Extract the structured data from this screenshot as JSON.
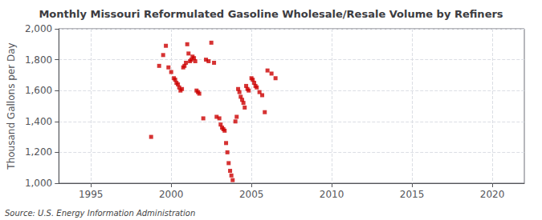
{
  "chart_data": {
    "type": "scatter",
    "title": "Monthly Missouri Reformulated Gasoline Wholesale/Resale Volume by Refiners",
    "ylabel": "Thousand Gallons per Day",
    "annotation": "Source: U.S. Energy Information Administration",
    "color": "#cc0000",
    "marker": "square",
    "grid": true,
    "xlim": [
      1993,
      2022
    ],
    "ylim": [
      1000,
      2000
    ],
    "xticks": [
      1995,
      2000,
      2005,
      2010,
      2015,
      2020
    ],
    "yticks": [
      {
        "value": 1000,
        "label": "1,000"
      },
      {
        "value": 1200,
        "label": "1,200"
      },
      {
        "value": 1400,
        "label": "1,400"
      },
      {
        "value": 1600,
        "label": "1,600"
      },
      {
        "value": 1800,
        "label": "1,800"
      },
      {
        "value": 2000,
        "label": "2,000"
      }
    ],
    "x": [
      1998.75,
      1999.25,
      1999.5,
      1999.67,
      1999.83,
      2000.0,
      2000.17,
      2000.25,
      2000.33,
      2000.42,
      2000.5,
      2000.58,
      2000.67,
      2000.75,
      2000.83,
      2000.92,
      2001.0,
      2001.08,
      2001.17,
      2001.25,
      2001.33,
      2001.42,
      2001.5,
      2001.58,
      2001.67,
      2001.75,
      2002.0,
      2002.17,
      2002.33,
      2002.5,
      2002.67,
      2002.83,
      2003.0,
      2003.08,
      2003.17,
      2003.25,
      2003.33,
      2003.42,
      2003.5,
      2003.58,
      2003.67,
      2003.75,
      2003.83,
      2004.0,
      2004.08,
      2004.17,
      2004.25,
      2004.33,
      2004.42,
      2004.5,
      2004.58,
      2004.67,
      2004.75,
      2004.83,
      2005.0,
      2005.08,
      2005.17,
      2005.25,
      2005.33,
      2005.5,
      2005.67,
      2005.83,
      2006.0,
      2006.25,
      2006.5
    ],
    "values": [
      1300,
      1760,
      1830,
      1890,
      1750,
      1720,
      1680,
      1670,
      1650,
      1640,
      1620,
      1600,
      1610,
      1750,
      1760,
      1780,
      1900,
      1840,
      1790,
      1800,
      1820,
      1810,
      1790,
      1600,
      1590,
      1580,
      1420,
      1800,
      1790,
      1910,
      1780,
      1430,
      1420,
      1380,
      1360,
      1350,
      1340,
      1260,
      1200,
      1130,
      1080,
      1050,
      1020,
      1400,
      1430,
      1610,
      1590,
      1560,
      1540,
      1520,
      1490,
      1630,
      1610,
      1600,
      1680,
      1670,
      1650,
      1630,
      1620,
      1590,
      1570,
      1460,
      1730,
      1710,
      1680
    ]
  }
}
